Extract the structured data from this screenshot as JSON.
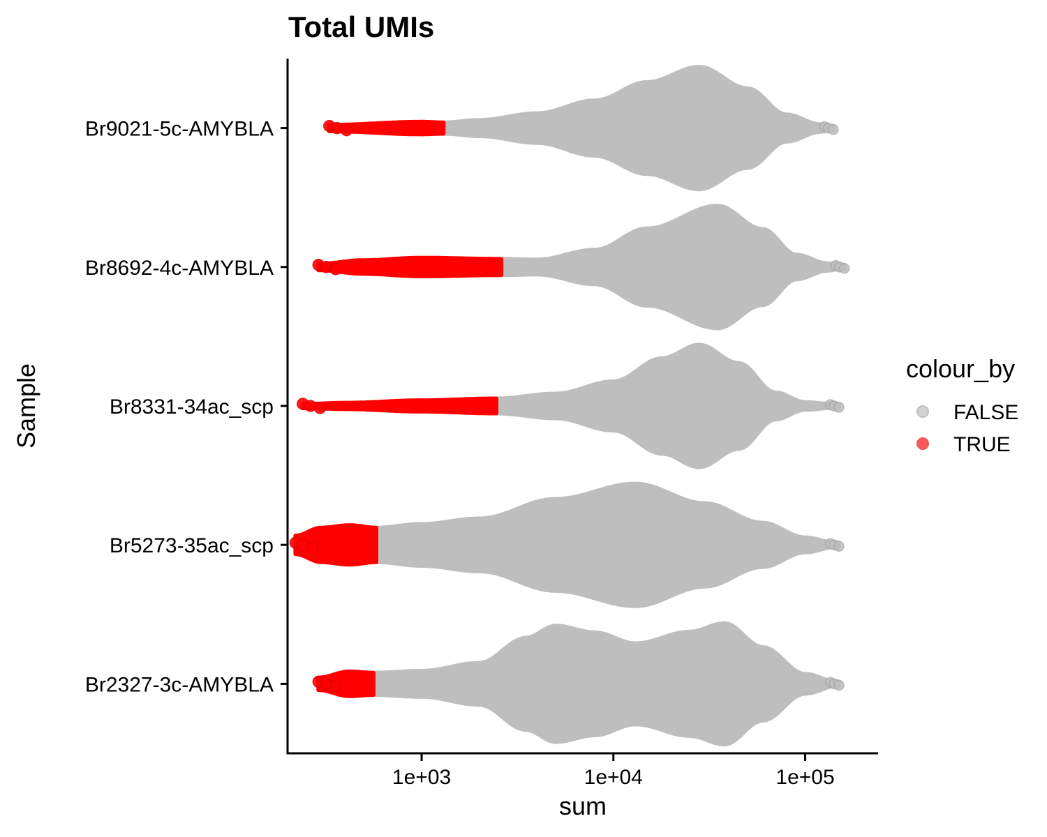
{
  "chart_data": {
    "type": "violin",
    "title": "Total UMIs",
    "xlabel": "sum",
    "ylabel": "Sample",
    "x_scale": "log10",
    "xlim": [
      200,
      240000
    ],
    "x_ticks": [
      {
        "value": 1000,
        "label": "1e+03"
      },
      {
        "value": 10000,
        "label": "1e+04"
      },
      {
        "value": 100000,
        "label": "1e+05"
      }
    ],
    "categories": [
      "Br9021-5c-AMYBLA",
      "Br8692-4c-AMYBLA",
      "Br8331-34ac_scp",
      "Br5273-35ac_scp",
      "Br2327-3c-AMYBLA"
    ],
    "legend": {
      "title": "colour_by",
      "position": "right",
      "entries": [
        {
          "label": "FALSE",
          "color": "#bebebe"
        },
        {
          "label": "TRUE",
          "color": "#ff0000"
        }
      ]
    },
    "samples": [
      {
        "name": "Br9021-5c-AMYBLA",
        "min": 330,
        "max": 140000,
        "threshold": 1300,
        "density": [
          [
            330,
            0.05
          ],
          [
            1000,
            0.1
          ],
          [
            1300,
            0.09
          ],
          [
            2000,
            0.13
          ],
          [
            4000,
            0.24
          ],
          [
            8000,
            0.45
          ],
          [
            15000,
            0.75
          ],
          [
            28000,
            1.0
          ],
          [
            50000,
            0.65
          ],
          [
            80000,
            0.22
          ],
          [
            120000,
            0.06
          ],
          [
            140000,
            0.02
          ]
        ]
      },
      {
        "name": "Br8692-4c-AMYBLA",
        "min": 290,
        "max": 160000,
        "threshold": 2600,
        "density": [
          [
            290,
            0.05
          ],
          [
            500,
            0.11
          ],
          [
            1000,
            0.15
          ],
          [
            2600,
            0.13
          ],
          [
            4000,
            0.12
          ],
          [
            8000,
            0.28
          ],
          [
            15000,
            0.63
          ],
          [
            35000,
            1.0
          ],
          [
            60000,
            0.62
          ],
          [
            90000,
            0.2
          ],
          [
            130000,
            0.06
          ],
          [
            160000,
            0.02
          ]
        ]
      },
      {
        "name": "Br8331-34ac_scp",
        "min": 240,
        "max": 150000,
        "threshold": 2450,
        "density": [
          [
            240,
            0.03
          ],
          [
            400,
            0.05
          ],
          [
            1000,
            0.09
          ],
          [
            2450,
            0.12
          ],
          [
            5000,
            0.2
          ],
          [
            10000,
            0.4
          ],
          [
            18000,
            0.78
          ],
          [
            28000,
            1.0
          ],
          [
            45000,
            0.7
          ],
          [
            70000,
            0.22
          ],
          [
            100000,
            0.06
          ],
          [
            150000,
            0.02
          ]
        ]
      },
      {
        "name": "Br5273-35ac_scp",
        "min": 220,
        "max": 150000,
        "threshold": 580,
        "density": [
          [
            220,
            0.15
          ],
          [
            300,
            0.28
          ],
          [
            420,
            0.32
          ],
          [
            580,
            0.28
          ],
          [
            1000,
            0.34
          ],
          [
            2000,
            0.43
          ],
          [
            5000,
            0.75
          ],
          [
            13000,
            1.0
          ],
          [
            30000,
            0.68
          ],
          [
            60000,
            0.36
          ],
          [
            100000,
            0.12
          ],
          [
            150000,
            0.02
          ]
        ]
      },
      {
        "name": "Br2327-3c-AMYBLA",
        "min": 290,
        "max": 150000,
        "threshold": 560,
        "density": [
          [
            290,
            0.1
          ],
          [
            420,
            0.2
          ],
          [
            560,
            0.18
          ],
          [
            1000,
            0.21
          ],
          [
            2000,
            0.34
          ],
          [
            3500,
            0.75
          ],
          [
            5000,
            0.95
          ],
          [
            8000,
            0.84
          ],
          [
            13000,
            0.66
          ],
          [
            25000,
            0.85
          ],
          [
            38000,
            0.99
          ],
          [
            60000,
            0.6
          ],
          [
            100000,
            0.16
          ],
          [
            150000,
            0.02
          ]
        ]
      }
    ]
  }
}
